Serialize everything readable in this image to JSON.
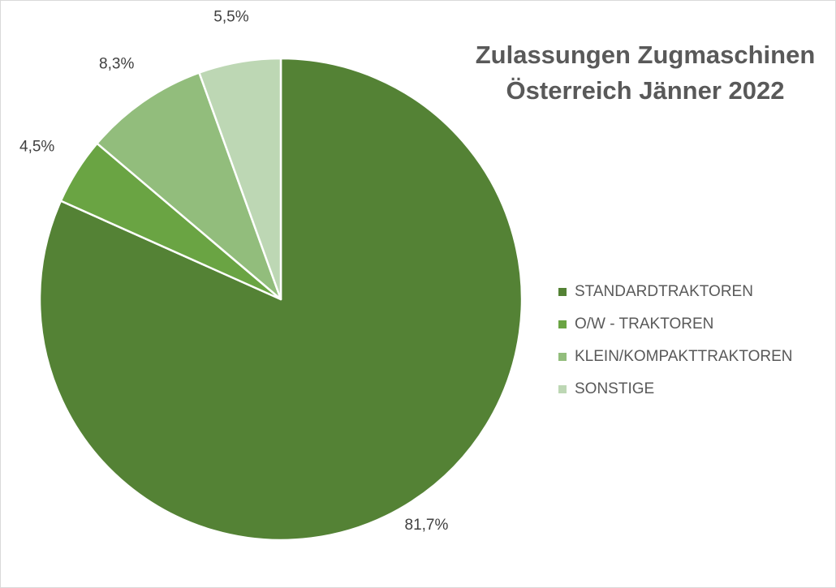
{
  "chart_data": {
    "type": "pie",
    "title": "Zulassungen Zugmaschinen Österreich Jänner 2022",
    "title_lines": [
      "Zulassungen Zugmaschinen",
      "Österreich Jänner 2022"
    ],
    "legend_position": "right",
    "series": [
      {
        "name": "STANDARDTRAKTOREN",
        "value": 81.7,
        "label": "81,7%",
        "color": "#548235"
      },
      {
        "name": "O/W - TRAKTOREN",
        "value": 4.5,
        "label": "4,5%",
        "color": "#6aa443"
      },
      {
        "name": "KLEIN/KOMPAKTTRAKTOREN",
        "value": 8.3,
        "label": "8,3%",
        "color": "#92bd7c"
      },
      {
        "name": "SONSTIGE",
        "value": 5.5,
        "label": "5,5%",
        "color": "#bdd7b4"
      }
    ]
  }
}
